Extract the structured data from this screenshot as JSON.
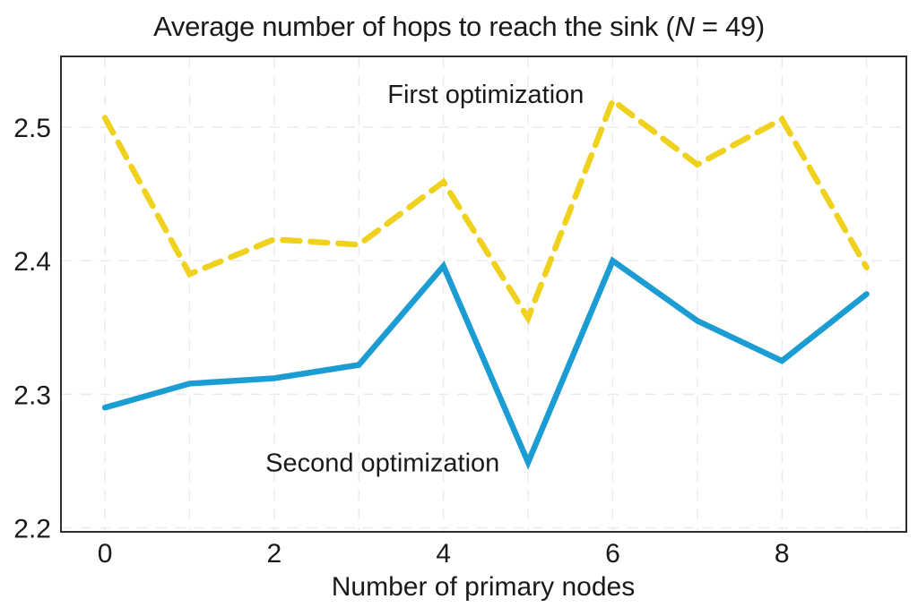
{
  "figure": {
    "title": {
      "prefix": "Average number of hops to reach the sink (",
      "variable": "N",
      "suffix": " = 49)"
    }
  },
  "chart_data": {
    "type": "line",
    "title": "Average number of hops to reach the sink (N = 49)",
    "xlabel": "Number of primary nodes",
    "ylabel": "",
    "x": [
      0,
      1,
      2,
      3,
      4,
      5,
      6,
      7,
      8,
      9
    ],
    "series": [
      {
        "name": "First optimization",
        "color": "#F0D11E",
        "line_style": "dashed",
        "line_width": 6.5,
        "values": [
          2.507,
          2.39,
          2.416,
          2.412,
          2.459,
          2.357,
          2.52,
          2.472,
          2.506,
          2.395
        ]
      },
      {
        "name": "Second optimization",
        "color": "#1B9CD2",
        "line_style": "solid",
        "line_width": 6.5,
        "values": [
          2.29,
          2.308,
          2.312,
          2.322,
          2.396,
          2.249,
          2.4,
          2.355,
          2.325,
          2.375
        ]
      }
    ],
    "xlim": [
      -0.52,
      9.47
    ],
    "ylim": [
      2.197,
      2.553
    ],
    "xticks": [
      0,
      2,
      4,
      6,
      8
    ],
    "xtick_labels": [
      "0",
      "2",
      "4",
      "6",
      "8"
    ],
    "yticks": [
      2.2,
      2.3,
      2.4,
      2.5
    ],
    "ytick_labels": [
      "2.2",
      "2.3",
      "2.4",
      "2.5"
    ],
    "x_gridlines": [
      0,
      1,
      2,
      3,
      4,
      5,
      6,
      7,
      8,
      9
    ],
    "grid": true,
    "grid_style": "dashed",
    "legend_position": "inline-annotations",
    "annotations": [
      {
        "text": "First optimization",
        "x": 4.5,
        "y": 2.525
      },
      {
        "text": "Second optimization",
        "x": 3.28,
        "y": 2.249
      }
    ]
  },
  "colors": {
    "first_optimization": "#F0D11E",
    "second_optimization": "#1B9CD2",
    "grid": "#EAEAEA",
    "border": "#2E2E2E",
    "text": "#1A1A1A",
    "background": "#FFFFFF"
  }
}
